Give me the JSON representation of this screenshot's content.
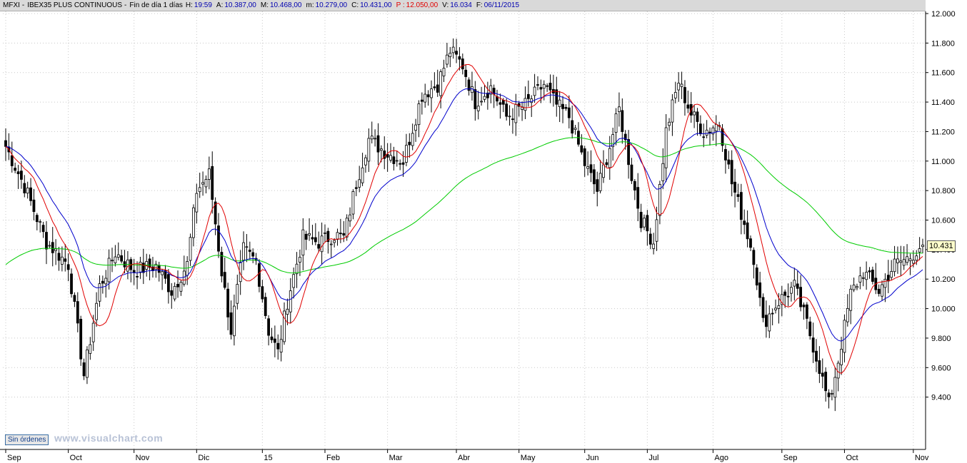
{
  "header": {
    "symbol": "MFXI",
    "name": "IBEX35 PLUS CONTINUOUS",
    "period": "Fin de día 1 días",
    "hour_label": "H:",
    "hour": "19:59",
    "open_label": "A:",
    "open": "10.387,00",
    "high_label": "M:",
    "high": "10.468,00",
    "low_label": "m:",
    "low": "10.279,00",
    "close_label": "C:",
    "close": "10.431,00",
    "p_label": "P :",
    "p": "12.050,00",
    "volume_label": "V:",
    "volume": "16.034",
    "date_label": "F:",
    "date": "06/11/2015"
  },
  "orders_button": "Sin órdenes",
  "watermark": "www.visualchart.com",
  "last_price_tag": "10.431",
  "colors": {
    "background": "#ffffff",
    "grid": "#c8c8c8",
    "candle": "#000000",
    "ma_fast": "#e00000",
    "ma_mid": "#0000cc",
    "ma_slow": "#00cc00",
    "axis": "#000000"
  },
  "chart_data": {
    "type": "candlestick",
    "y_ticks": [
      "12.000",
      "11.800",
      "11.600",
      "11.400",
      "11.200",
      "11.000",
      "10.800",
      "10.600",
      "10.400",
      "10.200",
      "10.000",
      "9.800",
      "9.600",
      "9.400"
    ],
    "y_range": [
      9200,
      12000
    ],
    "x_labels": [
      "Sep",
      "Oct",
      "Nov",
      "Dic",
      "15",
      "Feb",
      "Mar",
      "Abr",
      "May",
      "Jun",
      "Jul",
      "Ago",
      "Sep",
      "Oct",
      "Nov"
    ],
    "x_label_index": [
      0,
      20,
      41,
      61,
      82,
      102,
      122,
      144,
      164,
      185,
      205,
      226,
      248,
      268,
      290
    ],
    "path": [
      [
        0,
        11100
      ],
      [
        6,
        10830
      ],
      [
        13,
        10450
      ],
      [
        20,
        10300
      ],
      [
        25,
        9550
      ],
      [
        30,
        10150
      ],
      [
        35,
        10380
      ],
      [
        41,
        10260
      ],
      [
        48,
        10290
      ],
      [
        53,
        10120
      ],
      [
        58,
        10300
      ],
      [
        61,
        10800
      ],
      [
        65,
        10910
      ],
      [
        69,
        10250
      ],
      [
        72,
        9850
      ],
      [
        76,
        10400
      ],
      [
        80,
        10320
      ],
      [
        84,
        9850
      ],
      [
        87,
        9700
      ],
      [
        90,
        10050
      ],
      [
        95,
        10480
      ],
      [
        100,
        10450
      ],
      [
        105,
        10500
      ],
      [
        108,
        10480
      ],
      [
        112,
        10850
      ],
      [
        116,
        11150
      ],
      [
        122,
        11050
      ],
      [
        127,
        11000
      ],
      [
        133,
        11450
      ],
      [
        138,
        11520
      ],
      [
        142,
        11750
      ],
      [
        146,
        11650
      ],
      [
        150,
        11400
      ],
      [
        155,
        11500
      ],
      [
        160,
        11300
      ],
      [
        166,
        11380
      ],
      [
        172,
        11520
      ],
      [
        176,
        11380
      ],
      [
        180,
        11300
      ],
      [
        185,
        10980
      ],
      [
        189,
        10800
      ],
      [
        193,
        11100
      ],
      [
        196,
        11350
      ],
      [
        200,
        10900
      ],
      [
        203,
        10600
      ],
      [
        207,
        10450
      ],
      [
        211,
        11200
      ],
      [
        215,
        11540
      ],
      [
        219,
        11320
      ],
      [
        223,
        11200
      ],
      [
        228,
        11260
      ],
      [
        232,
        10850
      ],
      [
        236,
        10580
      ],
      [
        239,
        10350
      ],
      [
        242,
        9900
      ],
      [
        247,
        10050
      ],
      [
        252,
        10150
      ],
      [
        256,
        9900
      ],
      [
        260,
        9600
      ],
      [
        263,
        9350
      ],
      [
        266,
        9650
      ],
      [
        270,
        10100
      ],
      [
        274,
        10250
      ],
      [
        279,
        10120
      ],
      [
        284,
        10300
      ],
      [
        289,
        10350
      ],
      [
        292,
        10420
      ],
      [
        293,
        10431
      ]
    ],
    "n_bars": 294,
    "ma_periods": [
      10,
      20,
      200
    ],
    "last_close": 10431
  }
}
